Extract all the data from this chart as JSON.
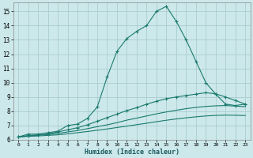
{
  "title": "",
  "xlabel": "Humidex (Indice chaleur)",
  "ylabel": "",
  "background_color": "#cce8ea",
  "grid_color": "#aacdd0",
  "line_color": "#1a7a6e",
  "xlim": [
    -0.5,
    23.5
  ],
  "ylim": [
    6,
    15.6
  ],
  "yticks": [
    6,
    7,
    8,
    9,
    10,
    11,
    12,
    13,
    14,
    15
  ],
  "xticks": [
    0,
    1,
    2,
    3,
    4,
    5,
    6,
    7,
    8,
    9,
    10,
    11,
    12,
    13,
    14,
    15,
    16,
    17,
    18,
    19,
    20,
    21,
    22,
    23
  ],
  "lines": [
    {
      "x": [
        0,
        1,
        2,
        3,
        4,
        5,
        6,
        7,
        8,
        9,
        10,
        11,
        12,
        13,
        14,
        15,
        16,
        17,
        18,
        19,
        20,
        21,
        22,
        23
      ],
      "y": [
        6.2,
        6.4,
        6.4,
        6.5,
        6.6,
        7.0,
        7.1,
        7.5,
        8.3,
        10.4,
        12.2,
        13.1,
        13.6,
        14.0,
        15.0,
        15.35,
        14.3,
        13.0,
        11.5,
        10.0,
        9.2,
        8.5,
        8.4,
        8.5
      ],
      "marker": "+"
    },
    {
      "x": [
        0,
        1,
        2,
        3,
        4,
        5,
        6,
        7,
        8,
        9,
        10,
        11,
        12,
        13,
        14,
        15,
        16,
        17,
        18,
        19,
        20,
        21,
        22,
        23
      ],
      "y": [
        6.2,
        6.3,
        6.35,
        6.4,
        6.55,
        6.7,
        6.85,
        7.05,
        7.3,
        7.55,
        7.8,
        8.05,
        8.25,
        8.5,
        8.7,
        8.88,
        9.0,
        9.1,
        9.2,
        9.3,
        9.22,
        9.0,
        8.75,
        8.5
      ],
      "marker": "+"
    },
    {
      "x": [
        0,
        1,
        2,
        3,
        4,
        5,
        6,
        7,
        8,
        9,
        10,
        11,
        12,
        13,
        14,
        15,
        16,
        17,
        18,
        19,
        20,
        21,
        22,
        23
      ],
      "y": [
        6.2,
        6.27,
        6.32,
        6.38,
        6.45,
        6.55,
        6.65,
        6.78,
        6.92,
        7.05,
        7.2,
        7.38,
        7.52,
        7.67,
        7.82,
        7.95,
        8.07,
        8.18,
        8.27,
        8.34,
        8.38,
        8.4,
        8.36,
        8.32
      ],
      "marker": null
    },
    {
      "x": [
        0,
        1,
        2,
        3,
        4,
        5,
        6,
        7,
        8,
        9,
        10,
        11,
        12,
        13,
        14,
        15,
        16,
        17,
        18,
        19,
        20,
        21,
        22,
        23
      ],
      "y": [
        6.2,
        6.24,
        6.27,
        6.31,
        6.35,
        6.42,
        6.5,
        6.58,
        6.67,
        6.76,
        6.86,
        6.96,
        7.06,
        7.16,
        7.27,
        7.37,
        7.46,
        7.54,
        7.61,
        7.67,
        7.71,
        7.73,
        7.72,
        7.7
      ],
      "marker": null
    }
  ]
}
